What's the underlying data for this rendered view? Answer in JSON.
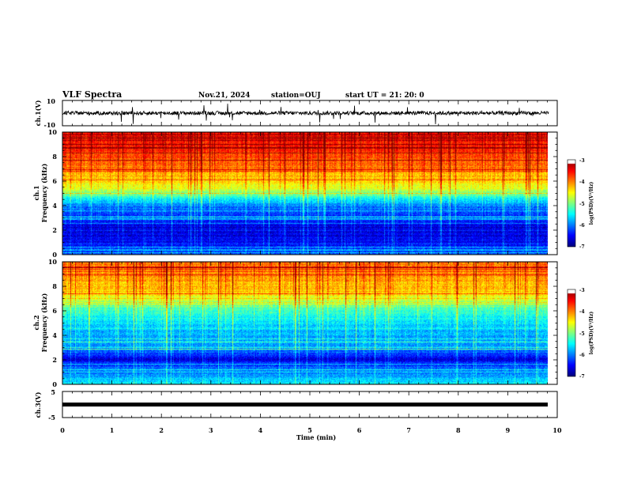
{
  "header": {
    "title": "VLF Spectra",
    "date": "Nov.21, 2024",
    "station": "station=OUJ",
    "start": "start UT =  21: 20: 0"
  },
  "chart_data": [
    {
      "type": "line",
      "name": "ch1-waveform",
      "ylabel": "ch.1(V)",
      "ylim": [
        -10,
        10
      ],
      "yticks": [
        "10",
        "-10"
      ],
      "xlim": [
        0,
        10
      ],
      "xlabel": "Time (min)",
      "description_values": {
        "baseline": 0,
        "typical_spread": 1.5
      }
    },
    {
      "type": "heatmap",
      "name": "ch1-spectrogram",
      "ylabel": "ch.1\nFrequency (kHz)",
      "ylim": [
        0,
        10
      ],
      "yticks": [
        "0",
        "2",
        "4",
        "6",
        "8",
        "10"
      ],
      "xlim": [
        0,
        9.83
      ],
      "colorbar": {
        "label": "log(PSD)(V²/Hz)",
        "range": [
          -7,
          -3
        ],
        "ticks": [
          "-3",
          "-4",
          "-5",
          "-6",
          "-7"
        ]
      },
      "profile": [
        {
          "f": 0.0,
          "v": -6.2
        },
        {
          "f": 1.0,
          "v": -6.5
        },
        {
          "f": 2.0,
          "v": -6.7
        },
        {
          "f": 3.0,
          "v": -6.3
        },
        {
          "f": 4.0,
          "v": -6.0
        },
        {
          "f": 4.8,
          "v": -5.2
        },
        {
          "f": 5.5,
          "v": -4.6
        },
        {
          "f": 6.5,
          "v": -4.2
        },
        {
          "f": 7.5,
          "v": -3.9
        },
        {
          "f": 9.0,
          "v": -3.6
        },
        {
          "f": 10.0,
          "v": -3.5
        }
      ]
    },
    {
      "type": "heatmap",
      "name": "ch2-spectrogram",
      "ylabel": "ch.2\nFrequency (kHz)",
      "ylim": [
        0,
        10
      ],
      "yticks": [
        "0",
        "2",
        "4",
        "6",
        "8",
        "10"
      ],
      "xlim": [
        0,
        9.83
      ],
      "colorbar": {
        "label": "log(PSD)(V²/Hz)",
        "range": [
          -7,
          -3
        ],
        "ticks": [
          "-3",
          "-4",
          "-5",
          "-6",
          "-7"
        ]
      },
      "profile": [
        {
          "f": 0.0,
          "v": -5.6
        },
        {
          "f": 1.5,
          "v": -6.2
        },
        {
          "f": 2.0,
          "v": -6.6
        },
        {
          "f": 3.0,
          "v": -5.9
        },
        {
          "f": 4.0,
          "v": -5.8
        },
        {
          "f": 5.0,
          "v": -5.6
        },
        {
          "f": 6.0,
          "v": -5.3
        },
        {
          "f": 6.8,
          "v": -4.8
        },
        {
          "f": 7.5,
          "v": -4.3
        },
        {
          "f": 9.0,
          "v": -4.1
        },
        {
          "f": 10.0,
          "v": -3.9
        }
      ]
    },
    {
      "type": "line",
      "name": "ch3-waveform",
      "ylabel": "ch.3(V)",
      "ylim": [
        -5,
        5
      ],
      "yticks": [
        "5",
        "-5"
      ],
      "xlim": [
        0,
        9.83
      ],
      "description_values": {
        "baseline": -1.2
      }
    }
  ],
  "xaxis": {
    "label": "Time (min)",
    "ticks": [
      "0",
      "1",
      "2",
      "3",
      "4",
      "5",
      "6",
      "7",
      "8",
      "9",
      "10"
    ]
  }
}
